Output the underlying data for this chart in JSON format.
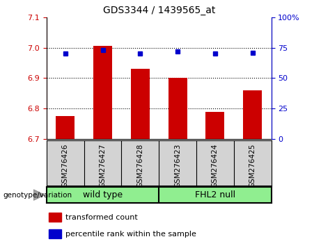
{
  "title": "GDS3344 / 1439565_at",
  "categories": [
    "GSM276426",
    "GSM276427",
    "GSM276428",
    "GSM276423",
    "GSM276424",
    "GSM276425"
  ],
  "bar_values": [
    6.775,
    7.005,
    6.93,
    6.9,
    6.79,
    6.86
  ],
  "percentile_values": [
    70,
    73,
    70,
    72,
    70,
    71
  ],
  "bar_color": "#cc0000",
  "dot_color": "#0000cc",
  "ylim_left": [
    6.7,
    7.1
  ],
  "ylim_right": [
    0,
    100
  ],
  "yticks_left": [
    6.7,
    6.8,
    6.9,
    7.0,
    7.1
  ],
  "yticks_right": [
    0,
    25,
    50,
    75,
    100
  ],
  "legend_items": [
    {
      "color": "#cc0000",
      "label": "transformed count"
    },
    {
      "color": "#0000cc",
      "label": "percentile rank within the sample"
    }
  ],
  "bar_width": 0.5,
  "tick_area_color": "#d3d3d3",
  "group_area_color": "#90EE90",
  "genotype_label": "genotype/variation",
  "wild_type_label": "wild type",
  "fhl2_label": "FHL2 null"
}
